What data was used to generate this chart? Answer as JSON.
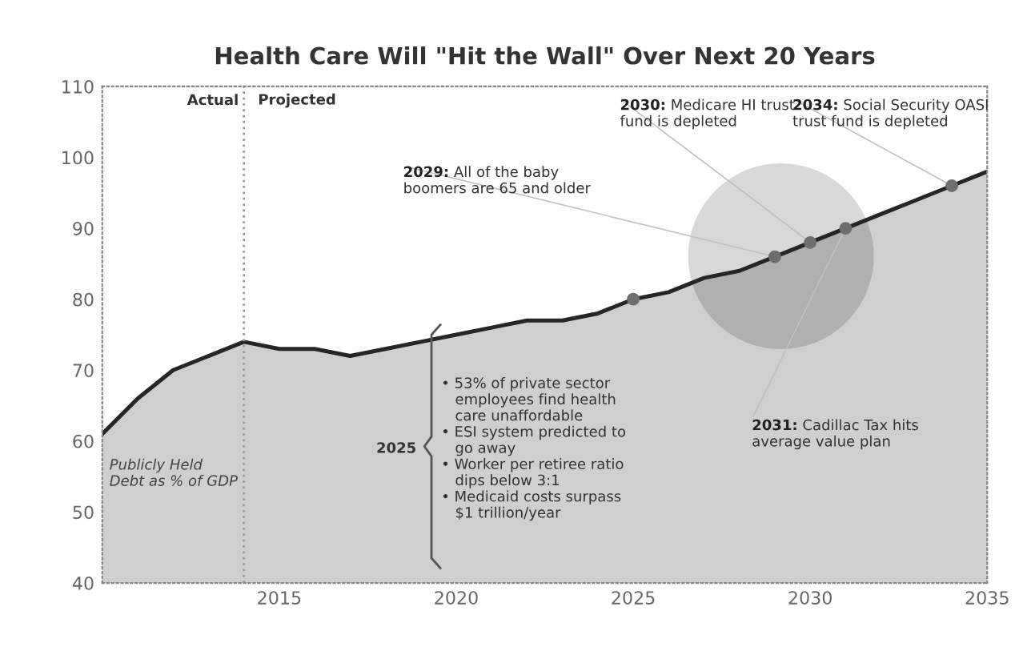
{
  "chart_data": {
    "type": "area",
    "title": "Health Care Will \"Hit the Wall\" Over Next 20 Years",
    "x": [
      2010,
      2011,
      2012,
      2013,
      2014,
      2015,
      2016,
      2017,
      2018,
      2019,
      2020,
      2021,
      2022,
      2023,
      2024,
      2025,
      2026,
      2027,
      2028,
      2029,
      2030,
      2031,
      2032,
      2033,
      2034,
      2035
    ],
    "series": [
      {
        "color": "#262626",
        "values": [
          61,
          66,
          70,
          72,
          74,
          73,
          73,
          72,
          73,
          74,
          75,
          76,
          77,
          77,
          78,
          80,
          81,
          83,
          84,
          86,
          88,
          90,
          92,
          94,
          96,
          98
        ]
      },
      {
        "type": "scatter",
        "marker": "circle",
        "color": "#6e6e6e",
        "x": [
          2025,
          2029,
          2030,
          2031,
          2034
        ],
        "values": [
          80,
          86,
          88,
          90,
          96
        ]
      }
    ],
    "xlim": [
      2010,
      2035
    ],
    "xticks": [
      2015,
      2020,
      2025,
      2030,
      2035
    ],
    "ylim": [
      40,
      110
    ],
    "yticks": [
      40,
      50,
      60,
      70,
      80,
      90,
      100,
      110
    ],
    "grid": false,
    "ref_lines": [
      {
        "axis": "x",
        "value": 2014,
        "label": "Projected",
        "line_style": "dotted",
        "color": "#9a9a9a"
      }
    ],
    "annotations": [
      "Actual",
      "Publicly Held\nDebt as % of GDP",
      "2025",
      "• 53% of private sector\n   employees find health\n   care unaffordable\n• ESI system predicted to\n   go away\n• Worker per retiree ratio\n   dips below 3:1\n• Medicaid costs surpass\n   $1 trillion/year",
      {
        "text": "2029: All of the baby\nboomers are 65 and older",
        "x": 2029,
        "y": 86
      },
      {
        "text": "2030: Medicare HI trust\nfund is depleted",
        "x": 2030,
        "y": 88
      },
      {
        "text": "2034: Social Security OASI\ntrust fund is depleted",
        "x": 2034,
        "y": 96
      },
      {
        "text": "2031: Cadillac Tax hits\naverage value plan",
        "x": 2031,
        "y": 90
      }
    ]
  }
}
